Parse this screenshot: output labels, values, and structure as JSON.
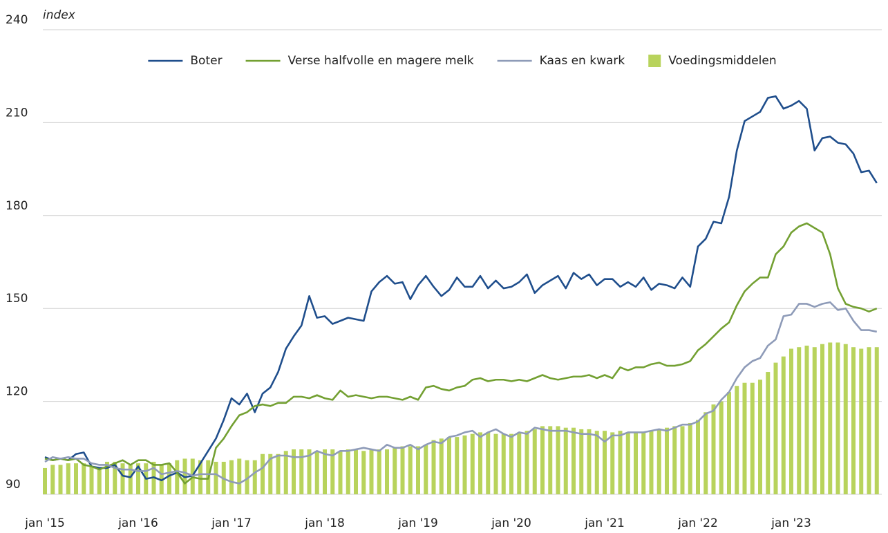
{
  "chart_data": {
    "type": "line",
    "y_label": "index",
    "categories": [
      "jan '15",
      null,
      null,
      null,
      null,
      null,
      null,
      null,
      null,
      null,
      null,
      null,
      "jan '16",
      null,
      null,
      null,
      null,
      null,
      null,
      null,
      null,
      null,
      null,
      null,
      "jan '17",
      null,
      null,
      null,
      null,
      null,
      null,
      null,
      null,
      null,
      null,
      null,
      "jan '18",
      null,
      null,
      null,
      null,
      null,
      null,
      null,
      null,
      null,
      null,
      null,
      "jan '19",
      null,
      null,
      null,
      null,
      null,
      null,
      null,
      null,
      null,
      null,
      null,
      "jan '20",
      null,
      null,
      null,
      null,
      null,
      null,
      null,
      null,
      null,
      null,
      null,
      "jan '21",
      null,
      null,
      null,
      null,
      null,
      null,
      null,
      null,
      null,
      null,
      null,
      "jan '22",
      null,
      null,
      null,
      null,
      null,
      null,
      null,
      null,
      null,
      null,
      null,
      "jan '23",
      null,
      null,
      null,
      null,
      null,
      null,
      null,
      null,
      null,
      null,
      null
    ],
    "ylim": [
      90,
      240
    ],
    "yticks": [
      90,
      120,
      150,
      180,
      210,
      240
    ],
    "grid": true,
    "series": [
      {
        "name": "Boter",
        "type": "line",
        "color": "#1f4e8c",
        "values": [
          102,
          101,
          101.5,
          101,
          103,
          103.5,
          99,
          98.5,
          98.5,
          99.5,
          96,
          95.5,
          99,
          95,
          95.5,
          94.5,
          96,
          97,
          95.5,
          96,
          100,
          104,
          108,
          114,
          121,
          119,
          122.5,
          116.5,
          122.5,
          124.5,
          129.5,
          137,
          141,
          144.5,
          154,
          147,
          147.5,
          145,
          146,
          147,
          146.5,
          146,
          155.5,
          158.5,
          160.5,
          158,
          158.5,
          153,
          157.5,
          160.5,
          157,
          154,
          156,
          160,
          157,
          157,
          160.5,
          156.5,
          159,
          156.5,
          157,
          158.5,
          161,
          155,
          157.5,
          159,
          160.5,
          156.5,
          161.5,
          159.5,
          161,
          157.5,
          159.5,
          159.5,
          157,
          158.5,
          157,
          160,
          156,
          158,
          157.5,
          156.5,
          160,
          157,
          170,
          172.5,
          178,
          177.5,
          186,
          201,
          210.5,
          212,
          213.5,
          218,
          218.5,
          214.5,
          215.5,
          217,
          214.5,
          201,
          205,
          205.5,
          203.5,
          203,
          200,
          194,
          194.5,
          190.5
        ]
      },
      {
        "name": "Verse halfvolle en magere melk",
        "type": "line",
        "color": "#73a032",
        "values": [
          101.5,
          101,
          101.5,
          101,
          101.5,
          99.5,
          99,
          98,
          99,
          100,
          101,
          99.5,
          101,
          101,
          99.5,
          99.5,
          100,
          97,
          93.5,
          95.5,
          95,
          95,
          105,
          108,
          112,
          115.5,
          116.5,
          118.5,
          119,
          118.5,
          119.5,
          119.5,
          121.5,
          121.5,
          121,
          122,
          121,
          120.5,
          123.5,
          121.5,
          122,
          121.5,
          121,
          121.5,
          121.5,
          121,
          120.5,
          121.5,
          120.5,
          124.5,
          125,
          124,
          123.5,
          124.5,
          125,
          127,
          127.5,
          126.5,
          127,
          127,
          126.5,
          127,
          126.5,
          127.5,
          128.5,
          127.5,
          127,
          127.5,
          128,
          128,
          128.5,
          127.5,
          128.5,
          127.5,
          131,
          130,
          131,
          131,
          132,
          132.5,
          131.5,
          131.5,
          132,
          133,
          136.5,
          138.5,
          141,
          143.5,
          145.5,
          151,
          155.5,
          158,
          160,
          160,
          167.5,
          170,
          174.5,
          176.5,
          177.5,
          176,
          174.5,
          167.5,
          156.5,
          151.5,
          150.5,
          150,
          149,
          150
        ]
      },
      {
        "name": "Kaas en kwark",
        "type": "line",
        "color": "#8e9bb8",
        "values": [
          100.5,
          102,
          101.5,
          102,
          101.5,
          101.5,
          100,
          99.5,
          99.5,
          98.5,
          98,
          98,
          97.5,
          97.5,
          98.5,
          96.5,
          97,
          97.5,
          97,
          96,
          96.5,
          96.5,
          96.5,
          95,
          94,
          93.5,
          95,
          97,
          98.5,
          101.5,
          102.5,
          102.5,
          102,
          102,
          102.5,
          104,
          103,
          102.5,
          104,
          104,
          104.5,
          105,
          104.5,
          104,
          106,
          105,
          105,
          106,
          104.5,
          106,
          107,
          106.5,
          108.5,
          109,
          110,
          110.5,
          108.5,
          110,
          111,
          109.5,
          108.5,
          110,
          109.5,
          111.5,
          111,
          110.5,
          110.5,
          110.5,
          110,
          109.5,
          109.5,
          109,
          107,
          109,
          109,
          110,
          110,
          110,
          110.5,
          111,
          110.5,
          111.5,
          112.5,
          112.5,
          113.5,
          116,
          117,
          120.5,
          123,
          127.5,
          131,
          133,
          134,
          138,
          140,
          147.5,
          148,
          151.5,
          151.5,
          150.5,
          151.5,
          152,
          149.5,
          150,
          146,
          143,
          143,
          142.5
        ]
      },
      {
        "name": "Voedingsmiddelen",
        "type": "bar",
        "color": "#b8d35c",
        "values": [
          98.5,
          99.5,
          99.5,
          100,
          100,
          100,
          99,
          98.5,
          100.5,
          100.5,
          100,
          99.5,
          100,
          100,
          100.5,
          99.5,
          100,
          101,
          101.5,
          101.5,
          101,
          101,
          100.5,
          100.5,
          101,
          101.5,
          101,
          101,
          103,
          103,
          103,
          104,
          104.5,
          104.5,
          104.5,
          104,
          104.5,
          104.5,
          104,
          104.5,
          104.5,
          104,
          104.5,
          104.5,
          104.5,
          105,
          105.5,
          105.5,
          105.5,
          106,
          107.5,
          108,
          108.5,
          108.5,
          109,
          109.5,
          110,
          110,
          109.5,
          109.5,
          109.5,
          110,
          110.5,
          111,
          112,
          112,
          112,
          111.5,
          111.5,
          111,
          111,
          110.5,
          110.5,
          110,
          110.5,
          110,
          110,
          110,
          110.5,
          111,
          111.5,
          112,
          112,
          113,
          114,
          116.5,
          119,
          120,
          123,
          125,
          126,
          126,
          127,
          129.5,
          132.5,
          134.5,
          137,
          137.5,
          138,
          137.5,
          138.5,
          139,
          139,
          138.5,
          137.5,
          137,
          137.5,
          137.5
        ]
      }
    ]
  }
}
